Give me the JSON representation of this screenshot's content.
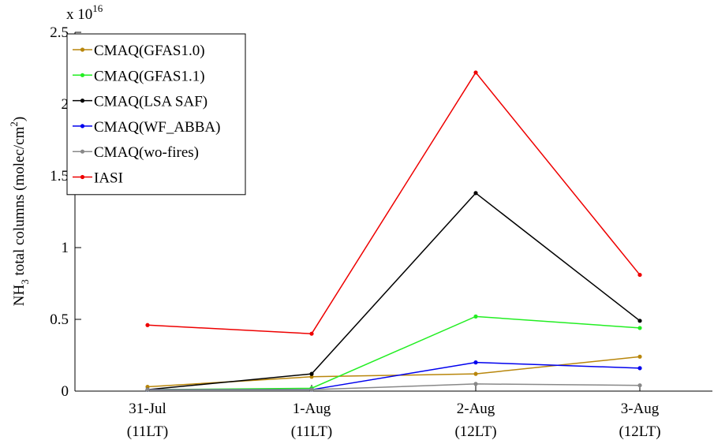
{
  "chart_data": {
    "type": "line",
    "title": "",
    "xlabel": "",
    "ylabel": {
      "main": "NH",
      "sub": "3",
      "mid": " total columns (molec/cm",
      "sup": "2",
      "end": ")"
    },
    "y_multiplier": {
      "base": "x 10",
      "exponent": "16"
    },
    "ylim": [
      0,
      2.5
    ],
    "yticks": [
      0,
      0.5,
      1,
      1.5,
      2,
      2.5
    ],
    "ytick_labels": [
      "0",
      "0.5",
      "1",
      "1.5",
      "2",
      "2.5"
    ],
    "categories": [
      {
        "date": "31-Jul",
        "time": "(11LT)"
      },
      {
        "date": "1-Aug",
        "time": "(11LT)"
      },
      {
        "date": "2-Aug",
        "time": "(12LT)"
      },
      {
        "date": "3-Aug",
        "time": "(12LT)"
      }
    ],
    "legend_position": "top-left",
    "grid": false,
    "series": [
      {
        "name": "CMAQ(GFAS1.0)",
        "color": "#b8860b",
        "values": [
          0.03,
          0.1,
          0.12,
          0.24
        ]
      },
      {
        "name": "CMAQ(GFAS1.1)",
        "color": "#22ee22",
        "values": [
          0.01,
          0.02,
          0.52,
          0.44
        ]
      },
      {
        "name": "CMAQ(LSA SAF)",
        "color": "#000000",
        "values": [
          0.01,
          0.12,
          1.38,
          0.49
        ]
      },
      {
        "name": "CMAQ(WF_ABBA)",
        "color": "#0000ee",
        "values": [
          0.01,
          0.01,
          0.2,
          0.16
        ]
      },
      {
        "name": "CMAQ(wo-fires)",
        "color": "#888888",
        "values": [
          0.01,
          0.01,
          0.05,
          0.04
        ]
      },
      {
        "name": "IASI",
        "color": "#ee0000",
        "values": [
          0.46,
          0.4,
          2.22,
          0.81
        ]
      }
    ]
  }
}
